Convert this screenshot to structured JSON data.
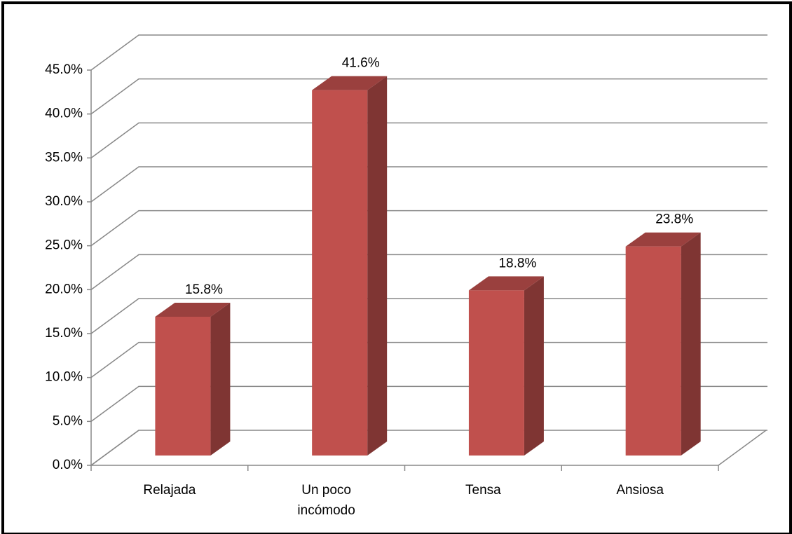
{
  "chart_data": {
    "type": "bar3d",
    "categories": [
      "Relajada",
      "Un poco incómodo",
      "Tensa",
      "Ansiosa"
    ],
    "values": [
      15.8,
      41.6,
      18.8,
      23.8
    ],
    "value_labels": [
      "15.8%",
      "41.6%",
      "18.8%",
      "23.8%"
    ],
    "color": "#c0504d",
    "ylim": [
      0,
      45
    ],
    "yticks": [
      {
        "value": 0,
        "label": "0.0%"
      },
      {
        "value": 5,
        "label": "5.0%"
      },
      {
        "value": 10,
        "label": "10.0%"
      },
      {
        "value": 15,
        "label": "15.0%"
      },
      {
        "value": 20,
        "label": "20.0%"
      },
      {
        "value": 25,
        "label": "25.0%"
      },
      {
        "value": 30,
        "label": "30.0%"
      },
      {
        "value": 35,
        "label": "35.0%"
      },
      {
        "value": 40,
        "label": "40.0%"
      },
      {
        "value": 45,
        "label": "45.0%"
      }
    ],
    "grid": true
  }
}
